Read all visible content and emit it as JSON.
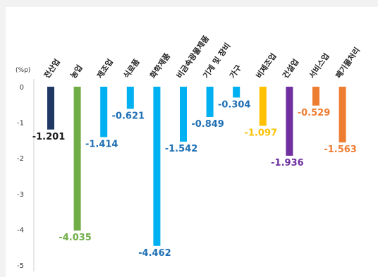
{
  "chart_data": {
    "type": "bar",
    "unit_label": "(%p)",
    "categories": [
      "전산업",
      "농업",
      "제조업",
      "식료품",
      "화학제품",
      "비금속광물제품",
      "기계 및 장비",
      "가구",
      "비제조업",
      "건설업",
      "서비스업",
      "폐기물처리"
    ],
    "values": [
      -1.201,
      -4.035,
      -1.414,
      -0.621,
      -4.462,
      -1.542,
      -0.849,
      -0.304,
      -1.097,
      -1.936,
      -0.529,
      -1.563
    ],
    "value_labels": [
      "-1.201",
      "-4.035",
      "-1.414",
      "-0.621",
      "-4.462",
      "-1.542",
      "-0.849",
      "-0.304",
      "-1.097",
      "-1.936",
      "-0.529",
      "-1.563"
    ],
    "colors": [
      "#1f3864",
      "#70ad47",
      "#00b0f0",
      "#00b0f0",
      "#00b0f0",
      "#00b0f0",
      "#00b0f0",
      "#00b0f0",
      "#ffc000",
      "#7030a0",
      "#ed7d31",
      "#ed7d31"
    ],
    "label_colors": [
      "#1a1a1a",
      "#70ad47",
      "#1f6fb4",
      "#1f6fb4",
      "#1f6fb4",
      "#1f6fb4",
      "#1f6fb4",
      "#1f6fb4",
      "#ffc000",
      "#7030a0",
      "#ed7d31",
      "#ed7d31"
    ],
    "yticks": [
      "0",
      "-1",
      "-2",
      "-3",
      "-4",
      "-5"
    ],
    "ylim": [
      -5,
      0
    ],
    "grid": false,
    "legend": "none"
  }
}
